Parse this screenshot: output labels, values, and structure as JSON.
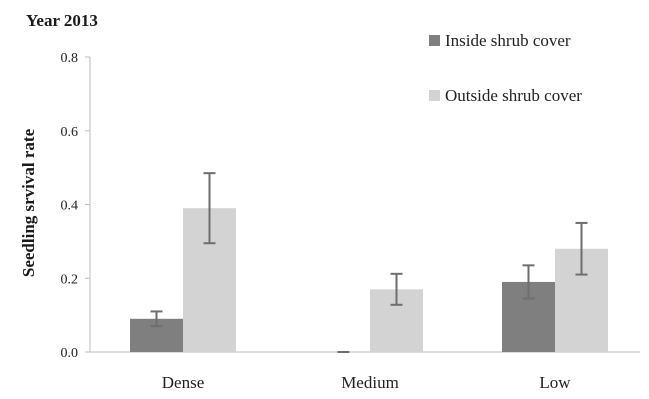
{
  "chart_data": {
    "type": "bar",
    "title": "Year 2013",
    "xlabel": "",
    "ylabel": "Seedling srvival rate",
    "ylim": [
      0,
      0.8
    ],
    "yticks": [
      0.0,
      0.2,
      0.4,
      0.6,
      0.8
    ],
    "ytick_labels": [
      "0.0",
      "0.2",
      "0.4",
      "0.6",
      "0.8"
    ],
    "categories": [
      "Dense",
      "Medium",
      "Low"
    ],
    "series": [
      {
        "name": "Inside shrub cover",
        "color": "#7f7f7f",
        "values": [
          0.09,
          0.0,
          0.19
        ],
        "errors": [
          0.02,
          0.0,
          0.045
        ]
      },
      {
        "name": "Outside shrub cover",
        "color": "#d3d3d3",
        "values": [
          0.39,
          0.17,
          0.28
        ],
        "errors": [
          0.095,
          0.042,
          0.07
        ]
      }
    ],
    "legend_position": "top-right",
    "grid": false,
    "error_bar_color": "#6e6e6e",
    "axis_color": "#bdbdbd"
  }
}
